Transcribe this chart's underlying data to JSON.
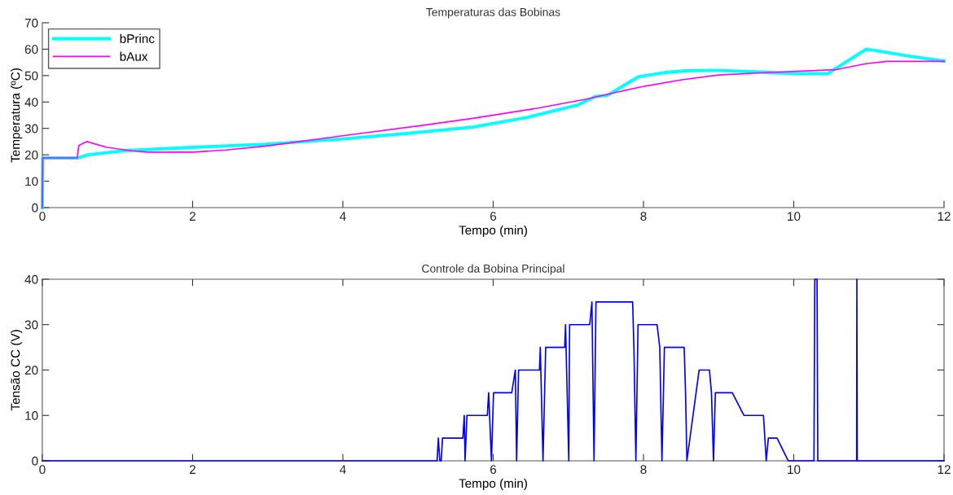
{
  "chart_data": [
    {
      "type": "line",
      "title": "Temperaturas das Bobinas",
      "xlabel": "Tempo (min)",
      "ylabel": "Temperatura (ºC)",
      "xlim": [
        0,
        12
      ],
      "ylim": [
        0,
        70
      ],
      "xticks": [
        0,
        2,
        4,
        6,
        8,
        10,
        12
      ],
      "yticks": [
        0,
        10,
        20,
        30,
        40,
        50,
        60,
        70
      ],
      "legend": "top left",
      "series": [
        {
          "name": "bPrinc",
          "color": "#00ffff",
          "x": [
            0,
            0.005,
            0.465,
            0.61,
            1.11,
            2.0,
            2.98,
            4.0,
            4.97,
            5.73,
            6.46,
            6.75,
            7.12,
            7.36,
            7.52,
            7.93,
            8.3,
            8.55,
            8.96,
            9.49,
            9.98,
            10.45,
            10.96,
            11.04,
            11.53,
            12.0
          ],
          "values": [
            0,
            18.8,
            18.8,
            20,
            21.6,
            22.8,
            24,
            26,
            28.4,
            30.5,
            34.2,
            36.3,
            38.8,
            42.1,
            42.5,
            49.5,
            51.2,
            51.8,
            52,
            51.4,
            50.8,
            50.7,
            59.9,
            59.7,
            57.4,
            55.5
          ]
        },
        {
          "name": "bAux",
          "color": "#ff00ff",
          "x": [
            0,
            0.005,
            0.465,
            0.485,
            0.59,
            0.86,
            1.19,
            1.4,
            2.0,
            2.44,
            2.98,
            4.0,
            4.97,
            5.73,
            6.54,
            7.24,
            7.69,
            8.02,
            8.51,
            9.0,
            9.61,
            10.35,
            10.55,
            10.96,
            11.24,
            12.0
          ],
          "values": [
            0,
            18.8,
            18.8,
            23.5,
            25,
            22.8,
            21.5,
            21,
            21,
            21.8,
            23.3,
            27.2,
            30.8,
            33.8,
            37.4,
            41.1,
            44,
            46,
            48.4,
            50.2,
            51.1,
            52,
            52.2,
            54.5,
            55.4,
            55.4
          ]
        }
      ]
    },
    {
      "type": "line",
      "title": "Controle da Bobina Principal",
      "xlabel": "Tempo (min)",
      "ylabel": "Tensão CC (V)",
      "xlim": [
        0,
        12
      ],
      "ylim": [
        0,
        40
      ],
      "xticks": [
        0,
        2,
        4,
        6,
        8,
        10,
        12
      ],
      "yticks": [
        0,
        10,
        20,
        30,
        40
      ],
      "legend": false,
      "series": [
        {
          "color": "#0000ff",
          "x": [
            0,
            5.254,
            5.27,
            5.29,
            5.308,
            5.326,
            5.597,
            5.615,
            5.626,
            5.651,
            5.922,
            5.94,
            5.977,
            6.005,
            6.247,
            6.295,
            6.312,
            6.338,
            6.616,
            6.627,
            6.663,
            6.699,
            6.952,
            6.963,
            7.006,
            7.017,
            7.285,
            7.314,
            7.342,
            7.368,
            7.856,
            7.873,
            7.899,
            7.928,
            8.181,
            8.217,
            8.246,
            8.279,
            8.542,
            8.56,
            8.578,
            8.741,
            8.878,
            8.905,
            8.932,
            8.957,
            9.182,
            9.337,
            9.597,
            9.634,
            9.662,
            9.778,
            9.926,
            10.269,
            10.28,
            10.31,
            10.32,
            10.837,
            10.84,
            10.845,
            12
          ],
          "values": [
            0,
            0,
            5,
            0,
            0,
            5,
            5,
            10,
            0,
            10,
            10,
            15,
            0,
            15,
            15,
            20,
            0,
            20,
            20,
            25,
            0,
            25,
            25,
            30,
            0,
            30,
            30,
            35,
            0,
            35,
            35,
            25,
            0,
            30,
            30,
            25,
            0,
            25,
            25,
            15,
            0,
            20,
            20,
            15,
            0,
            15,
            15,
            10,
            10,
            0,
            5,
            5,
            0,
            0,
            40,
            40,
            0,
            0,
            40,
            0,
            0
          ]
        }
      ]
    }
  ]
}
